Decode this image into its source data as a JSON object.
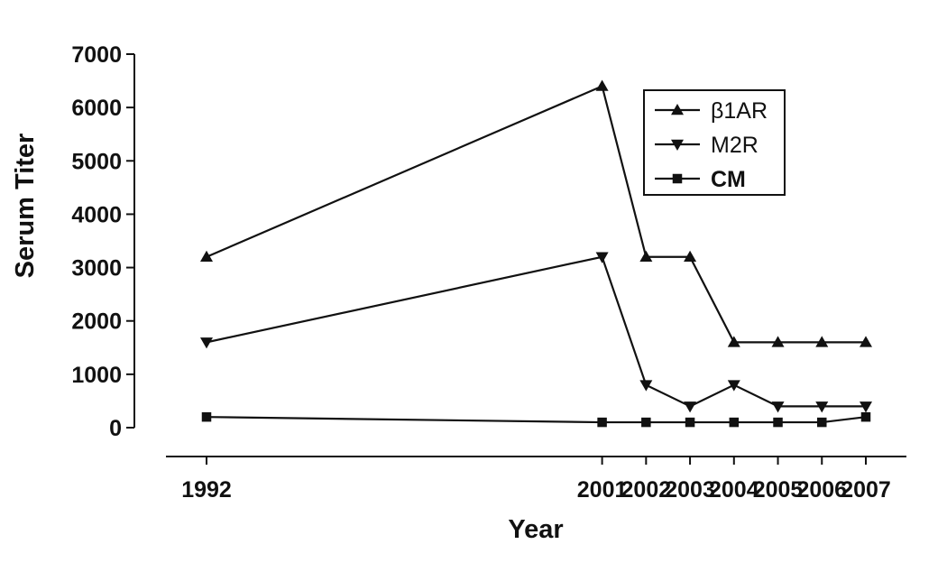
{
  "chart_data": {
    "type": "line",
    "title": "",
    "xlabel": "Year",
    "ylabel": "Serum Titer",
    "x": [
      1992,
      2001,
      2002,
      2003,
      2004,
      2005,
      2006,
      2007
    ],
    "x_tick_labels": [
      "1992",
      "2001",
      "2002",
      "2003",
      "2004",
      "2005",
      "2006",
      "2007"
    ],
    "y_ticks": [
      0,
      1000,
      2000,
      3000,
      4000,
      5000,
      6000,
      7000
    ],
    "ylim": [
      0,
      7000
    ],
    "grid": false,
    "legend_position": "top-right",
    "series": [
      {
        "name": "β1AR",
        "marker": "triangle-up",
        "color": "#111111",
        "values": [
          3200,
          6400,
          3200,
          3200,
          1600,
          1600,
          1600,
          1600
        ]
      },
      {
        "name": "M2R",
        "marker": "triangle-down",
        "color": "#111111",
        "values": [
          1600,
          3200,
          800,
          400,
          800,
          400,
          400,
          400
        ]
      },
      {
        "name": "CM",
        "marker": "square",
        "color": "#111111",
        "values": [
          200,
          100,
          100,
          100,
          100,
          100,
          100,
          200
        ]
      }
    ]
  }
}
